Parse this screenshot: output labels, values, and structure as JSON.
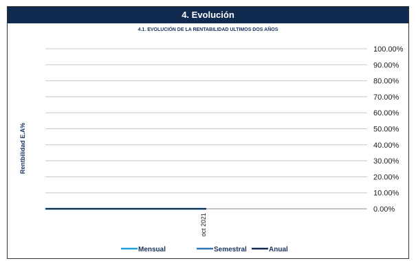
{
  "header": {
    "title": "4. Evolución"
  },
  "chart_data": {
    "type": "line",
    "title": "4.1. EVOLUCIÓN DE LA RENTABILIDAD ULTIMOS DOS AÑOS",
    "ylabel": "Rentbilidad  E.A%",
    "xlabel": "",
    "ylim": [
      0,
      100
    ],
    "yticks": [
      "100.00%",
      "90.00%",
      "80.00%",
      "70.00%",
      "60.00%",
      "50.00%",
      "40.00%",
      "30.00%",
      "20.00%",
      "10.00%",
      "0.00%"
    ],
    "categories": [
      "",
      "oct 2021",
      ""
    ],
    "series": [
      {
        "name": "Mensual",
        "color": "#1ea0d8",
        "values": [
          0,
          0,
          null
        ]
      },
      {
        "name": "Semestral",
        "color": "#2e75b6",
        "values": [
          0,
          0,
          null
        ]
      },
      {
        "name": "Anual",
        "color": "#112a4f",
        "values": [
          0,
          0,
          null
        ]
      }
    ],
    "grid": true,
    "legend": "bottom",
    "y_axis_side": "right"
  }
}
